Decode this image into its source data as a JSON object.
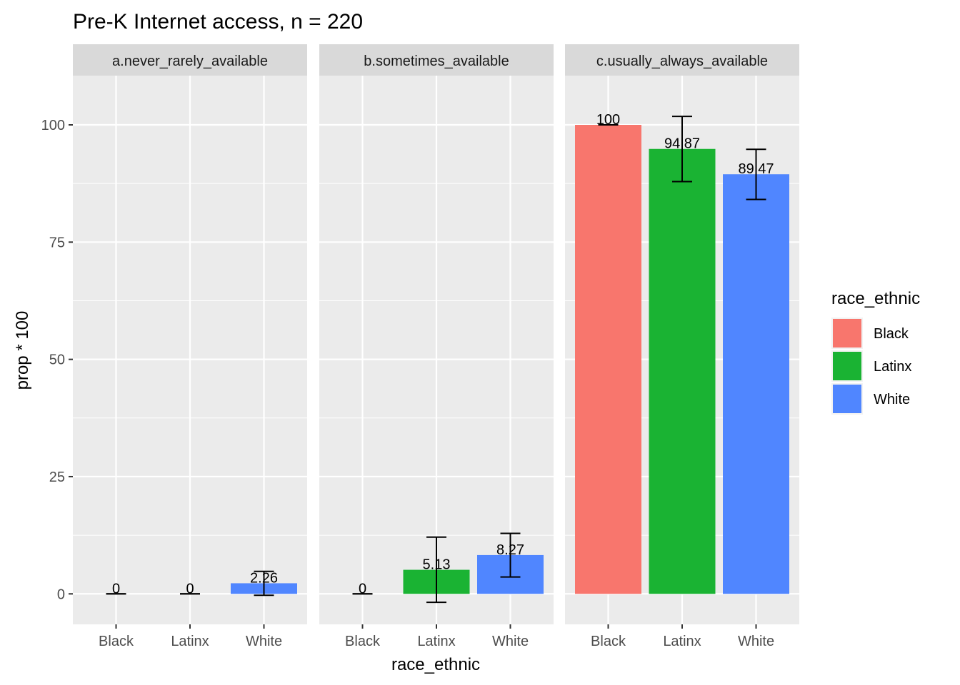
{
  "chart_data": {
    "type": "bar",
    "title": "Pre-K Internet access, n = 220",
    "xlabel": "race_ethnic",
    "ylabel": "prop * 100",
    "ylim": [
      -6.5,
      110.5
    ],
    "yticks": [
      0,
      25,
      50,
      75,
      100
    ],
    "grid": true,
    "categories": [
      "Black",
      "Latinx",
      "White"
    ],
    "colors": {
      "Black": "#F8766D",
      "Latinx": "#1AB333",
      "White": "#5086FF"
    },
    "legend": {
      "title": "race_ethnic",
      "position": "right",
      "items": [
        "Black",
        "Latinx",
        "White"
      ]
    },
    "panels": [
      {
        "label": "a.never_rarely_available",
        "bars": [
          {
            "category": "Black",
            "value": 0,
            "label": "0",
            "err_low": 0,
            "err_high": 0
          },
          {
            "category": "Latinx",
            "value": 0,
            "label": "0",
            "err_low": 0,
            "err_high": 0
          },
          {
            "category": "White",
            "value": 2.26,
            "label": "2.26",
            "err_low": -0.3,
            "err_high": 4.8
          }
        ]
      },
      {
        "label": "b.sometimes_available",
        "bars": [
          {
            "category": "Black",
            "value": 0,
            "label": "0",
            "err_low": 0,
            "err_high": 0
          },
          {
            "category": "Latinx",
            "value": 5.13,
            "label": "5.13",
            "err_low": -1.8,
            "err_high": 12.1
          },
          {
            "category": "White",
            "value": 8.27,
            "label": "8.27",
            "err_low": 3.6,
            "err_high": 12.9
          }
        ]
      },
      {
        "label": "c.usually_always_available",
        "bars": [
          {
            "category": "Black",
            "value": 100,
            "label": "100",
            "err_low": 100,
            "err_high": 100
          },
          {
            "category": "Latinx",
            "value": 94.87,
            "label": "94.87",
            "err_low": 87.9,
            "err_high": 101.8
          },
          {
            "category": "White",
            "value": 89.47,
            "label": "89.47",
            "err_low": 84.1,
            "err_high": 94.8
          }
        ]
      }
    ]
  }
}
